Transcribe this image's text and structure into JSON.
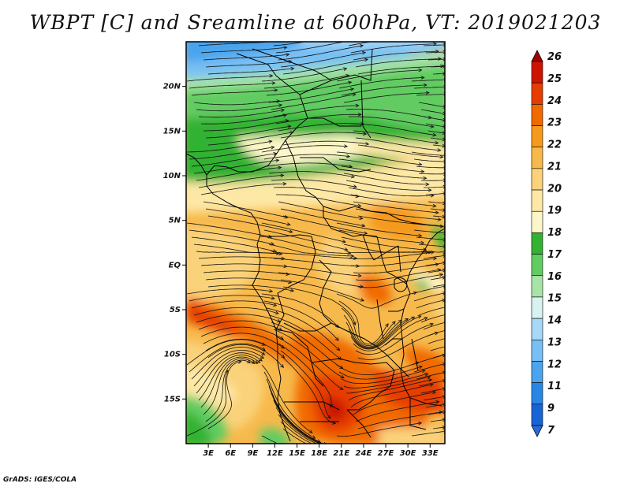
{
  "title": "WBPT [C] and Sreamline at 600hPa, VT: 2019021203",
  "footer": "GrADS: IGES/COLA",
  "map": {
    "lon_range": [
      0,
      35
    ],
    "lat_range": [
      -20,
      25
    ],
    "x_ticks": [
      "3E",
      "6E",
      "9E",
      "12E",
      "15E",
      "18E",
      "21E",
      "24E",
      "27E",
      "30E",
      "33E"
    ],
    "x_tick_values": [
      3,
      6,
      9,
      12,
      15,
      18,
      21,
      24,
      27,
      30,
      33
    ],
    "y_ticks": [
      "20N",
      "15N",
      "10N",
      "5N",
      "EQ",
      "5S",
      "10S",
      "15S"
    ],
    "y_tick_values": [
      20,
      15,
      10,
      5,
      0,
      -5,
      -10,
      -15
    ]
  },
  "colorbar": {
    "labels": [
      "26",
      "25",
      "24",
      "23",
      "22",
      "21",
      "20",
      "19",
      "18",
      "17",
      "16",
      "15",
      "14",
      "13",
      "12",
      "11",
      "9",
      "7"
    ],
    "colors": [
      "#a50000",
      "#cc1400",
      "#e63c00",
      "#f06a00",
      "#f59a1c",
      "#f7b94b",
      "#fad27a",
      "#fde8a6",
      "#fdf6c8",
      "#33b233",
      "#62cc62",
      "#a8e4a8",
      "#d8f2f0",
      "#a8d8f8",
      "#78c0f4",
      "#4aa4ee",
      "#2a86e4",
      "#1864d6",
      "#2a6ad8"
    ]
  }
}
